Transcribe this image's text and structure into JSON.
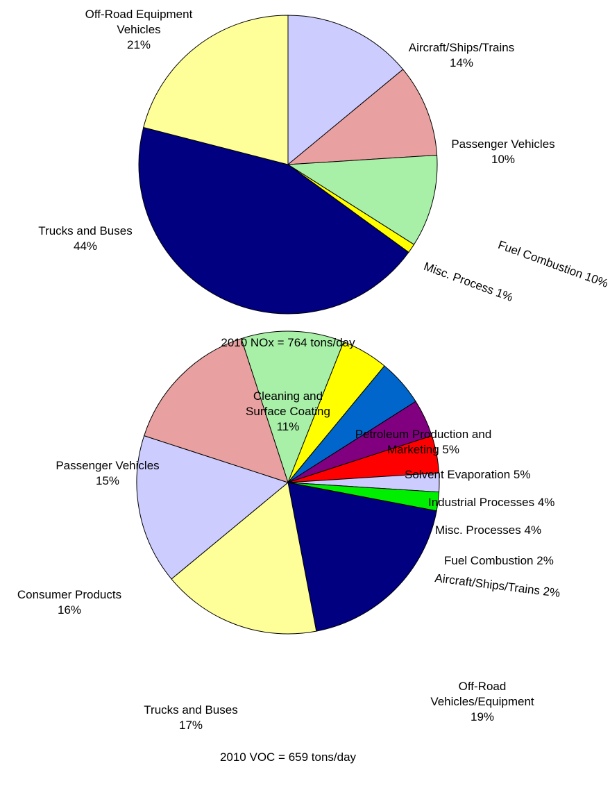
{
  "chart_data": [
    {
      "type": "pie",
      "title": "2010 NOx = 764 tons/day",
      "categories": [
        "Aircraft/Ships/Trains",
        "Passenger Vehicles",
        "Fuel Combustion",
        "Misc. Process",
        "Trucks and Buses",
        "Off-Road Equipment Vehicles"
      ],
      "values": [
        14,
        10,
        10,
        1,
        44,
        21
      ],
      "value_labels": [
        "14%",
        "10%",
        "10%",
        "1%",
        "44%",
        "21%"
      ],
      "colors": [
        "#ccccff",
        "#e8a0a0",
        "#a8f0a8",
        "#ffff00",
        "#000080",
        "#ffff99"
      ]
    },
    {
      "type": "pie",
      "title": "2010 VOC = 659 tons/day",
      "categories": [
        "Cleaning and Surface Coating",
        "Petroleum Production and Marketing",
        "Solvent Evaporation",
        "Industrial Processes",
        "Misc. Processes",
        "Fuel Combustion",
        "Aircraft/Ships/Trains",
        "Off-Road Vehicles/Equipment",
        "Trucks and Buses",
        "Consumer Products",
        "Passenger Vehicles"
      ],
      "values": [
        11,
        5,
        5,
        4,
        4,
        2,
        2,
        19,
        17,
        16,
        15
      ],
      "value_labels": [
        "11%",
        "5%",
        "5%",
        "4%",
        "4%",
        "2%",
        "2%",
        "19%",
        "17%",
        "16%",
        "15%"
      ],
      "colors": [
        "#a8f0a8",
        "#ffff00",
        "#0066cc",
        "#800080",
        "#ff0000",
        "#ccccff",
        "#00ee00",
        "#000080",
        "#ffff99",
        "#ccccff",
        "#e8a0a0"
      ]
    }
  ]
}
